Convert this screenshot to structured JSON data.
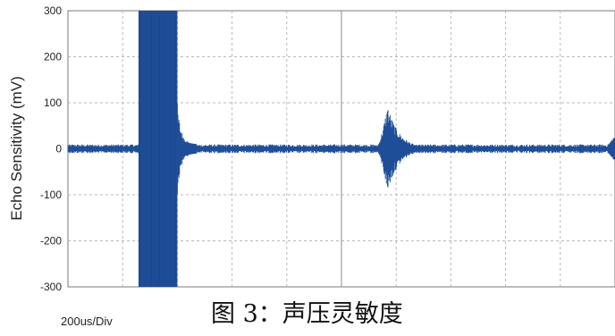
{
  "chart_data": {
    "type": "line",
    "title": "",
    "xlabel": "",
    "ylabel": "Echo Sensitivity (mV)",
    "ylim": [
      -300,
      300
    ],
    "xlim": [
      0,
      2000
    ],
    "x_unit": "us",
    "timebase_label": "200us/Div",
    "yticks": [
      "300",
      "200",
      "100",
      "0",
      "-100",
      "-200",
      "-300"
    ],
    "ytick_values": [
      300,
      200,
      100,
      0,
      -100,
      -200,
      -300
    ],
    "grid": true,
    "series": [
      {
        "color": "#1f4e99",
        "segments": [
          {
            "kind": "baseline",
            "x_start": 0,
            "x_end": 258,
            "amplitude": 8
          },
          {
            "kind": "saturated_burst",
            "x_start": 258,
            "x_end": 400,
            "min": -300,
            "max": 300
          },
          {
            "kind": "decay_tail",
            "x_start": 400,
            "x_end": 470,
            "peak": 100,
            "floor": 10
          },
          {
            "kind": "baseline",
            "x_start": 470,
            "x_end": 1125,
            "amplitude": 8
          },
          {
            "kind": "echo",
            "x_start": 1125,
            "x_end": 1280,
            "peak": 95
          },
          {
            "kind": "baseline",
            "x_start": 1280,
            "x_end": 1975,
            "amplitude": 8
          },
          {
            "kind": "echo_start",
            "x_start": 1975,
            "x_end": 2000,
            "peak": 30
          }
        ]
      }
    ]
  },
  "caption": "图 3：声压灵敏度"
}
